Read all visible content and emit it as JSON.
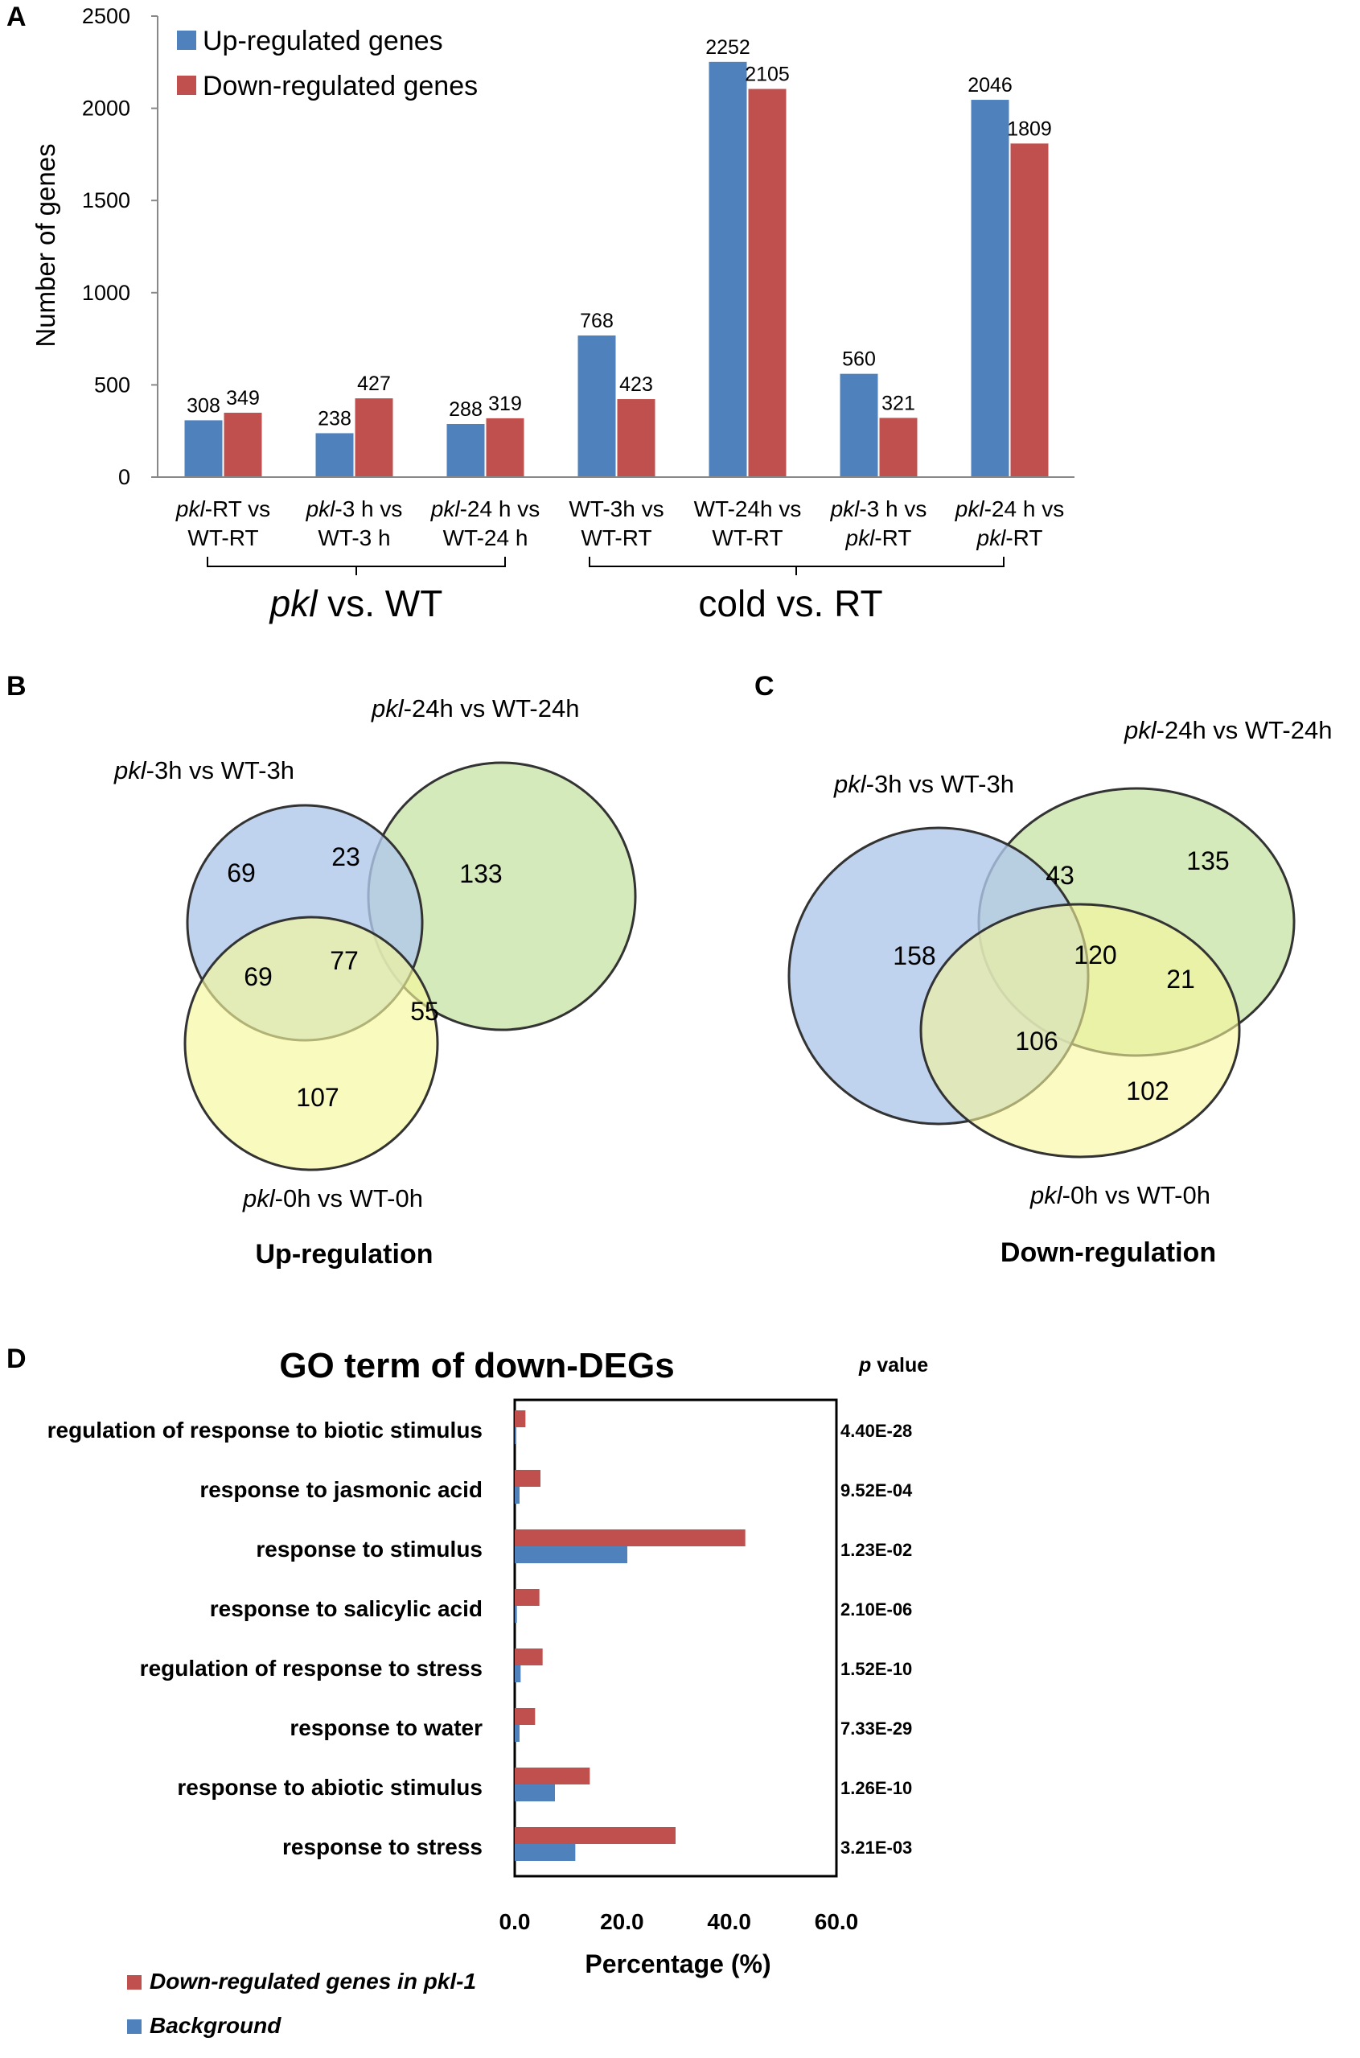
{
  "panels": {
    "a": "A",
    "b": "B",
    "c": "C",
    "d": "D"
  },
  "colors": {
    "up": "#4F81BD",
    "down": "#C0504D",
    "blue_circle": "#AFC8EA",
    "green_circle": "#CDE6AE",
    "yellow_circle": "#F6F79A"
  },
  "chart_data": [
    {
      "type": "bar",
      "ylabel": "Number of genes",
      "ylim": [
        0,
        2500
      ],
      "yticks": [
        "0",
        "500",
        "1000",
        "1500",
        "2000",
        "2500"
      ],
      "legend": [
        "Up-regulated genes",
        "Down-regulated genes"
      ],
      "categories": [
        {
          "l1a": "pkl",
          "l1b": "-RT vs",
          "l2a": "",
          "l2b": "WT-RT"
        },
        {
          "l1a": "pkl",
          "l1b": "-3 h vs",
          "l2a": "",
          "l2b": "WT-3 h"
        },
        {
          "l1a": "pkl",
          "l1b": "-24 h vs",
          "l2a": "",
          "l2b": "WT-24 h"
        },
        {
          "l1a": "",
          "l1b": "WT-3h vs",
          "l2a": "",
          "l2b": "WT-RT"
        },
        {
          "l1a": "",
          "l1b": "WT-24h vs",
          "l2a": "",
          "l2b": "WT-RT"
        },
        {
          "l1a": "pkl",
          "l1b": "-3 h vs",
          "l2a": "pkl",
          "l2b": "-RT"
        },
        {
          "l1a": "pkl",
          "l1b": "-24 h vs",
          "l2a": "pkl",
          "l2b": "-RT"
        }
      ],
      "series": [
        {
          "name": "Up-regulated genes",
          "values": [
            308,
            238,
            288,
            768,
            2252,
            560,
            2046
          ]
        },
        {
          "name": "Down-regulated genes",
          "values": [
            349,
            427,
            319,
            423,
            2105,
            321,
            1809
          ]
        }
      ],
      "groups": [
        {
          "a": "pkl",
          "b": " vs. WT"
        },
        {
          "a": "",
          "b": "cold vs. RT"
        }
      ]
    },
    {
      "type": "venn",
      "title": "Up-regulation",
      "sets": [
        {
          "a": "pkl",
          "b": "-3h vs WT-3h"
        },
        {
          "a": "pkl",
          "b": "-24h vs WT-24h"
        },
        {
          "a": "pkl",
          "b": "-0h vs WT-0h"
        }
      ],
      "counts": {
        "only_3h": "69",
        "3h_24h": "23",
        "only_24h": "133",
        "3h_0h": "69",
        "all": "77",
        "24h_0h": "55",
        "only_0h": "107"
      }
    },
    {
      "type": "venn",
      "title": "Down-regulation",
      "sets": [
        {
          "a": "pkl",
          "b": "-3h vs WT-3h"
        },
        {
          "a": "pkl",
          "b": "-24h vs WT-24h"
        },
        {
          "a": "pkl",
          "b": "-0h vs WT-0h"
        }
      ],
      "counts": {
        "only_3h": "158",
        "3h_24h": "43",
        "only_24h": "135",
        "3h_0h": "106",
        "all": "120",
        "24h_0h": "21",
        "only_0h": "102"
      }
    },
    {
      "type": "bar",
      "orientation": "horizontal",
      "title": "GO term of down-DEGs",
      "xlabel": "Percentage (%)",
      "xlim": [
        0,
        60
      ],
      "xticks": [
        "0.0",
        "20.0",
        "40.0",
        "60.0"
      ],
      "p_header": {
        "a": "p",
        "b": " value"
      },
      "categories": [
        "regulation of response to biotic stimulus",
        "response to jasmonic acid",
        "response to stimulus",
        "response to salicylic acid",
        "regulation of response to stress",
        "response to water",
        "response to abiotic stimulus",
        "response to stress"
      ],
      "p_values": [
        "4.40E-28",
        "9.52E-04",
        "1.23E-02",
        "2.10E-06",
        "1.52E-10",
        "7.33E-29",
        "1.26E-10",
        "3.21E-03"
      ],
      "series": [
        {
          "name": "Down-regulated genes in pkl-1",
          "values": [
            2.0,
            4.8,
            43.0,
            4.6,
            5.2,
            3.8,
            14.0,
            30.0
          ]
        },
        {
          "name": "Background",
          "values": [
            0.3,
            0.9,
            21.0,
            0.4,
            1.1,
            0.9,
            7.5,
            11.3
          ]
        }
      ],
      "legend": [
        "Down-regulated genes in pkl-1",
        "Background"
      ]
    }
  ]
}
